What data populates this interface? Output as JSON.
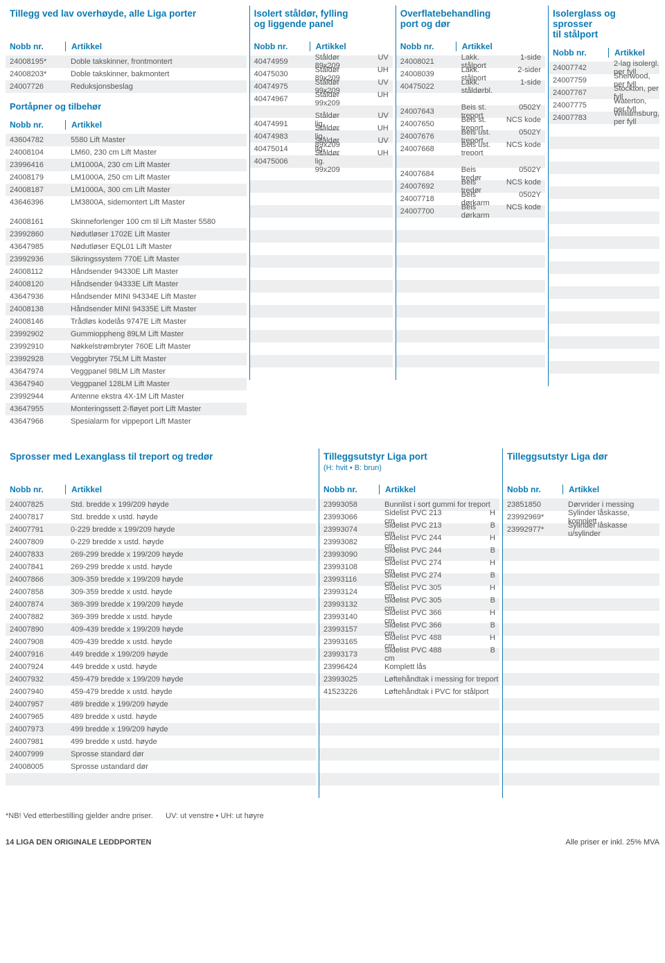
{
  "top": {
    "c1": {
      "head": "Tillegg ved lav overhøyde, alle Liga porter",
      "col_n": "Nobb nr.",
      "col_a": "Artikkel",
      "rows1": [
        {
          "n": "24008195*",
          "a": "Doble takskinner, frontmontert"
        },
        {
          "n": "24008203*",
          "a": "Doble takskinner, bakmontert"
        },
        {
          "n": "24007726",
          "a": "Reduksjonsbeslag"
        }
      ],
      "sub_head": "Portåpner og tilbehør",
      "rows2": [
        {
          "n": "43604782",
          "a": "5580 Lift Master"
        },
        {
          "n": "24008104",
          "a": "LM60, 230 cm Lift Master"
        },
        {
          "n": "23996416",
          "a": "LM1000A, 230 cm Lift Master"
        },
        {
          "n": "24008179",
          "a": "LM1000A, 250 cm Lift Master"
        },
        {
          "n": "24008187",
          "a": "LM1000A, 300 cm Lift Master"
        },
        {
          "n": "43646396",
          "a": "LM3800A, sidemontert Lift Master"
        }
      ],
      "rows3": [
        {
          "n": "24008161",
          "a": "Skinneforlenger 100 cm til Lift Master 5580"
        },
        {
          "n": "23992860",
          "a": "Nødutløser 1702E Lift Master"
        },
        {
          "n": "43647985",
          "a": "Nødutløser EQL01 Lift Master"
        },
        {
          "n": "23992936",
          "a": "Sikringssystem 770E Lift Master"
        },
        {
          "n": "24008112",
          "a": "Håndsender 94330E Lift Master"
        },
        {
          "n": "24008120",
          "a": "Håndsender 94333E Lift Master"
        },
        {
          "n": "43647936",
          "a": "Håndsender MINI 94334E Lift Master"
        },
        {
          "n": "24008138",
          "a": "Håndsender MINI 94335E Lift Master"
        },
        {
          "n": "24008146",
          "a": "Trådløs kodelås 9747E Lift Master"
        },
        {
          "n": "23992902",
          "a": "Gummioppheng 89LM Lift Master"
        },
        {
          "n": "23992910",
          "a": "Nøkkelstrømbryter 760E Lift Master"
        },
        {
          "n": "23992928",
          "a": "Veggbryter 75LM Lift Master"
        },
        {
          "n": "43647974",
          "a": "Veggpanel 98LM Lift Master"
        },
        {
          "n": "43647940",
          "a": "Veggpanel 128LM Lift Master"
        },
        {
          "n": "23992944",
          "a": "Antenne ekstra 4X-1M Lift Master"
        },
        {
          "n": "43647955",
          "a": "Monteringssett 2-fløyet port Lift Master"
        },
        {
          "n": "43647966",
          "a": "Spesialarm for vippeport Lift Master"
        }
      ]
    },
    "c2": {
      "head": "Isolert ståldør, fylling\nog liggende panel",
      "col_n": "Nobb nr.",
      "col_a": "Artikkel",
      "rows": [
        {
          "n": "40474959",
          "a": "Ståldør 89x209",
          "s": "UV"
        },
        {
          "n": "40475030",
          "a": "Ståldør 89x209",
          "s": "UH"
        },
        {
          "n": "40474975",
          "a": "Ståldør 99x209",
          "s": "UV"
        },
        {
          "n": "40474967",
          "a": "Ståldør 99x209",
          "s": "UH"
        },
        {
          "n": "",
          "a": ""
        },
        {
          "n": "40474991",
          "a": "Ståldør lig. 89x209",
          "s": "UV"
        },
        {
          "n": "40474983",
          "a": "Ståldør lig. 89x209",
          "s": "UH"
        },
        {
          "n": "40475014",
          "a": "Ståldør lig. 99x209",
          "s": "UV"
        },
        {
          "n": "40475006",
          "a": "Ståldør lig. 99x209",
          "s": "UH"
        }
      ]
    },
    "c3": {
      "head": "Overflatebehandling\nport og dør",
      "col_n": "Nobb nr.",
      "col_a": "Artikkel",
      "rows": [
        {
          "n": "24008021",
          "a": "Lakk. stålport",
          "s": "1-side"
        },
        {
          "n": "24008039",
          "a": "Lakk. stålport",
          "s": "2-sider"
        },
        {
          "n": "40475022",
          "a": "Lakk. ståldørbl.",
          "s": "1-side"
        },
        {
          "n": "",
          "a": ""
        },
        {
          "n": "24007643",
          "a": "Beis st. treport",
          "s": "0502Y"
        },
        {
          "n": "24007650",
          "a": "Beis st. treport",
          "s": "NCS kode"
        },
        {
          "n": "24007676",
          "a": "Beis ust. treport",
          "s": "0502Y"
        },
        {
          "n": "24007668",
          "a": "Beis ust. treport",
          "s": "NCS kode"
        },
        {
          "n": "",
          "a": ""
        },
        {
          "n": "24007684",
          "a": "Beis tredør",
          "s": "0502Y"
        },
        {
          "n": "24007692",
          "a": "Beis tredør",
          "s": "NCS kode"
        },
        {
          "n": "24007718",
          "a": "Beis dørkarm",
          "s": "0502Y"
        },
        {
          "n": "24007700",
          "a": "Beis dørkarm",
          "s": "NCS kode"
        }
      ]
    },
    "c4": {
      "head": "Isolerglass og sprosser\ntil stålport",
      "col_n": "Nobb nr.",
      "col_a": "Artikkel",
      "rows": [
        {
          "n": "24007742",
          "a": "2-lag isolergl. per fyll"
        },
        {
          "n": "24007759",
          "a": "Sherwood, per fyll"
        },
        {
          "n": "24007767",
          "a": "Stockton, per fyll"
        },
        {
          "n": "24007775",
          "a": "Waterton,  per fyll"
        },
        {
          "n": "24007783",
          "a": "Williamsburg, per fyll"
        }
      ]
    }
  },
  "bot": {
    "c1": {
      "head": "Sprosser med Lexanglass til treport og tredør",
      "col_n": "Nobb nr.",
      "col_a": "Artikkel",
      "rows": [
        {
          "n": "24007825",
          "a": "Std. bredde x 199/209 høyde"
        },
        {
          "n": "24007817",
          "a": "Std. bredde x ustd. høyde"
        },
        {
          "n": "24007791",
          "a": "0-229 bredde x 199/209 høyde"
        },
        {
          "n": "24007809",
          "a": "0-229 bredde x ustd. høyde"
        },
        {
          "n": "24007833",
          "a": "269-299 bredde x 199/209 høyde"
        },
        {
          "n": "24007841",
          "a": "269-299 bredde x ustd. høyde"
        },
        {
          "n": "24007866",
          "a": "309-359 bredde x 199/209 høyde"
        },
        {
          "n": "24007858",
          "a": "309-359 bredde x ustd. høyde"
        },
        {
          "n": "24007874",
          "a": "369-399 bredde x 199/209 høyde"
        },
        {
          "n": "24007882",
          "a": "369-399 bredde x ustd. høyde"
        },
        {
          "n": "24007890",
          "a": "409-439 bredde x 199/209 høyde"
        },
        {
          "n": "24007908",
          "a": "409-439 bredde x ustd. høyde"
        },
        {
          "n": "24007916",
          "a": "449 bredde x 199/209 høyde"
        },
        {
          "n": "24007924",
          "a": "449 bredde x ustd. høyde"
        },
        {
          "n": "24007932",
          "a": "459-479 bredde x 199/209 høyde"
        },
        {
          "n": "24007940",
          "a": "459-479 bredde x ustd. høyde"
        },
        {
          "n": "24007957",
          "a": "489 bredde x 199/209 høyde"
        },
        {
          "n": "24007965",
          "a": "489 bredde x ustd. høyde"
        },
        {
          "n": "24007973",
          "a": "499 bredde x 199/209 høyde"
        },
        {
          "n": "24007981",
          "a": "499 bredde x ustd. høyde"
        },
        {
          "n": "24007999",
          "a": "Sprosse standard dør"
        },
        {
          "n": "24008005",
          "a": "Sprosse ustandard dør"
        }
      ]
    },
    "c2": {
      "head": "Tilleggsutstyr Liga port",
      "sub": "(H: hvit • B: brun)",
      "col_n": "Nobb nr.",
      "col_a": "Artikkel",
      "rows": [
        {
          "n": "23993058",
          "a": "Bunnlist i sort gummi for treport"
        },
        {
          "n": "23993066",
          "a": "Sidelist PVC 213 cm",
          "s": "H"
        },
        {
          "n": "23993074",
          "a": "Sidelist PVC 213 cm",
          "s": "B"
        },
        {
          "n": "23993082",
          "a": "Sidelist PVC 244 cm",
          "s": "H"
        },
        {
          "n": "23993090",
          "a": "Sidelist PVC 244 cm",
          "s": "B"
        },
        {
          "n": "23993108",
          "a": "Sidelist PVC 274 cm",
          "s": "H"
        },
        {
          "n": "23993116",
          "a": "Sidelist PVC 274 cm",
          "s": "B"
        },
        {
          "n": "23993124",
          "a": "Sidelist PVC 305 cm",
          "s": "H"
        },
        {
          "n": "23993132",
          "a": "Sidelist PVC 305 cm",
          "s": "B"
        },
        {
          "n": "23993140",
          "a": "Sidelist PVC 366 cm",
          "s": "H"
        },
        {
          "n": "23993157",
          "a": "Sidelist PVC 366 cm",
          "s": "B"
        },
        {
          "n": "23993165",
          "a": "Sidelist PVC 488 cm",
          "s": "H"
        },
        {
          "n": "23993173",
          "a": "Sidelist PVC 488 cm",
          "s": "B"
        },
        {
          "n": "23996424",
          "a": "Komplett lås"
        },
        {
          "n": "23993025",
          "a": "Løftehåndtak i messing for treport"
        },
        {
          "n": "41523226",
          "a": "Løftehåndtak i PVC for stålport"
        }
      ]
    },
    "c3": {
      "head": "Tilleggsutstyr Liga dør",
      "col_n": "Nobb nr.",
      "col_a": "Artikkel",
      "rows": [
        {
          "n": "23851850",
          "a": "Dørvrider i messing"
        },
        {
          "n": "23992969*",
          "a": "Sylinder låskasse, komplett"
        },
        {
          "n": "23992977*",
          "a": "Sylinder låskasse u/sylinder"
        }
      ]
    }
  },
  "note": "*NB! Ved etterbestilling gjelder andre priser.      UV: ut venstre • UH: ut høyre",
  "foot_l": "14  LIGA  DEN ORIGINALE LEDDPORTEN",
  "foot_r": "Alle priser er inkl. 25% MVA"
}
